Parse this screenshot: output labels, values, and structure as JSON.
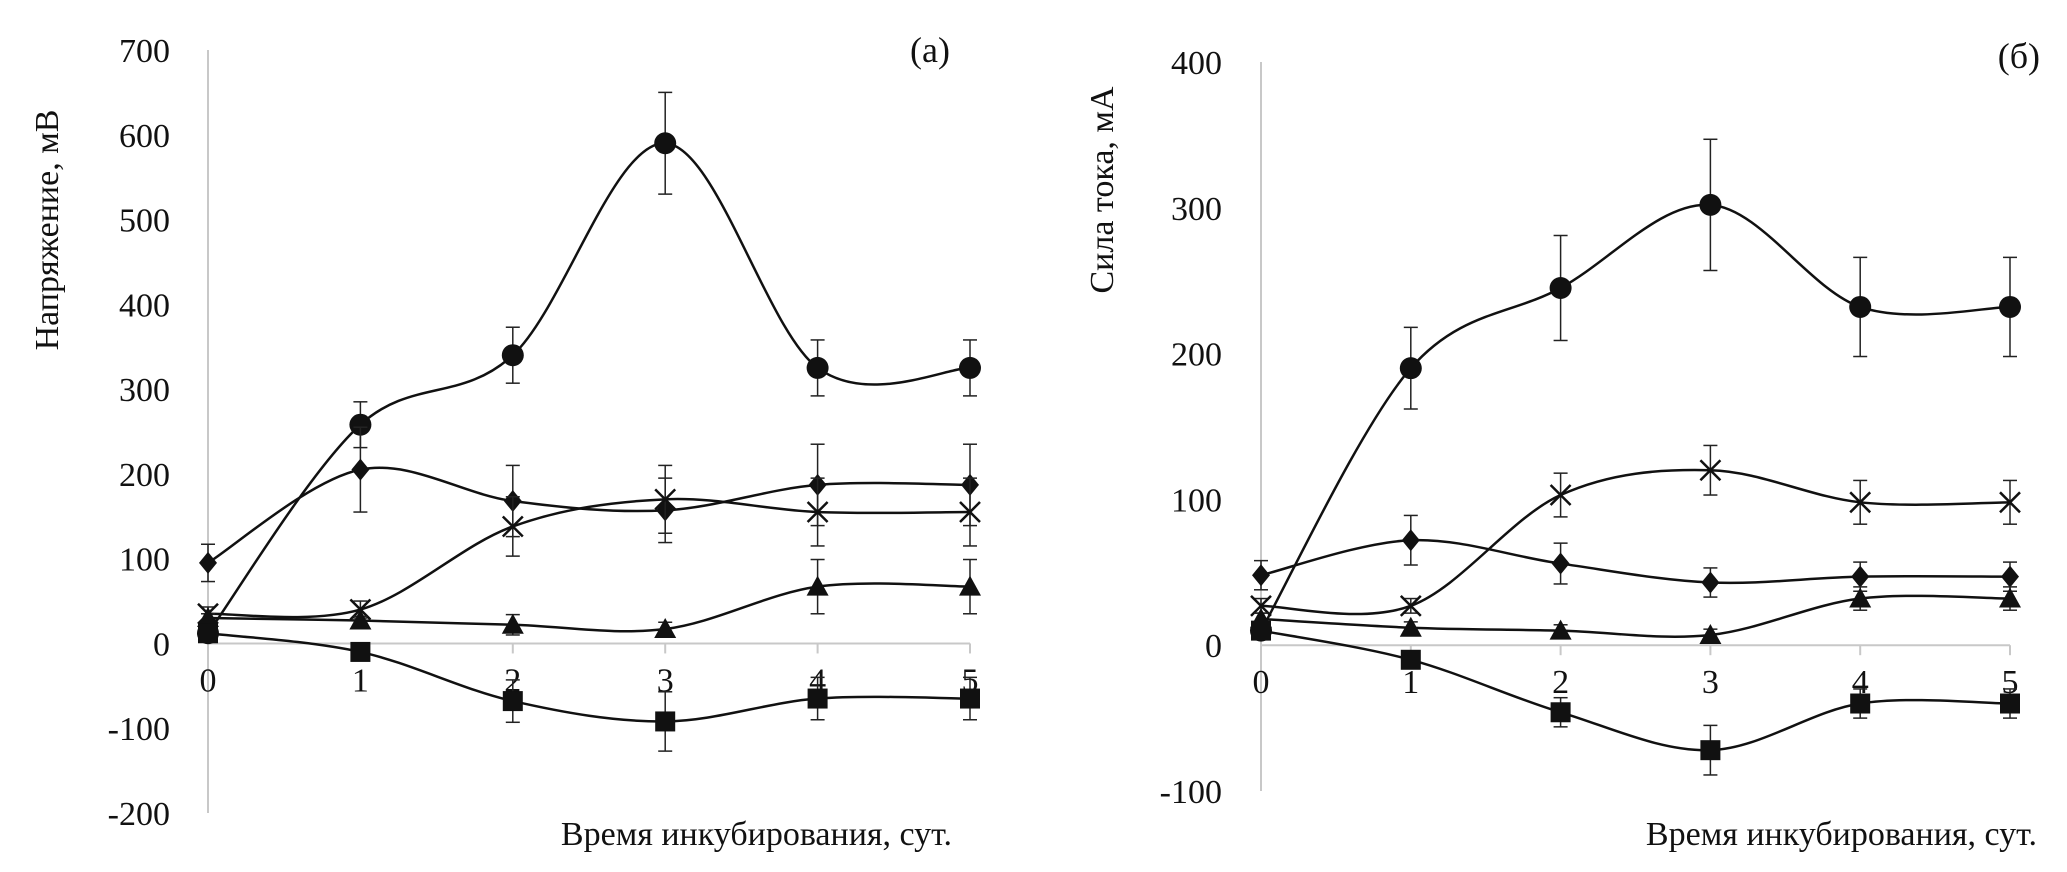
{
  "chart_data": [
    {
      "type": "line",
      "panel_label": "(а)",
      "xlabel": "Время инкубирования, сут.",
      "ylabel": "Напряжение, мВ",
      "x": [
        0,
        1,
        2,
        3,
        4,
        5
      ],
      "x_tick_labels": [
        "0",
        "1",
        "2",
        "3",
        "4",
        "5"
      ],
      "ylim": [
        -200,
        700
      ],
      "y_ticks": [
        -200,
        -100,
        0,
        100,
        200,
        300,
        400,
        500,
        600,
        700
      ],
      "grid": false,
      "series": [
        {
          "name": "circle",
          "marker": "circle",
          "values": [
            12,
            258,
            340,
            590,
            325,
            325
          ],
          "errors": [
            0,
            27,
            33,
            60,
            33,
            33
          ]
        },
        {
          "name": "diamond",
          "marker": "diamond",
          "values": [
            95,
            205,
            168,
            157,
            187,
            187
          ],
          "errors": [
            22,
            50,
            42,
            38,
            48,
            48
          ]
        },
        {
          "name": "cross",
          "marker": "cross",
          "values": [
            35,
            40,
            138,
            170,
            155,
            155
          ],
          "errors": [
            8,
            10,
            35,
            40,
            40,
            40
          ]
        },
        {
          "name": "triangle",
          "marker": "triangle",
          "values": [
            30,
            27,
            22,
            17,
            67,
            67
          ],
          "errors": [
            5,
            5,
            12,
            8,
            32,
            32
          ]
        },
        {
          "name": "square",
          "marker": "square",
          "values": [
            12,
            -10,
            -68,
            -92,
            -65,
            -65
          ],
          "errors": [
            5,
            5,
            25,
            35,
            25,
            25
          ]
        }
      ]
    },
    {
      "type": "line",
      "panel_label": "(б)",
      "xlabel": "Время инкубирования, сут.",
      "ylabel": "Сила тока, мА",
      "x": [
        0,
        1,
        2,
        3,
        4,
        5
      ],
      "x_tick_labels": [
        "0",
        "1",
        "2",
        "3",
        "4",
        "5"
      ],
      "ylim": [
        -100,
        400
      ],
      "y_ticks": [
        -100,
        0,
        100,
        200,
        300,
        400
      ],
      "grid": false,
      "series": [
        {
          "name": "circle",
          "marker": "circle",
          "values": [
            10,
            190,
            245,
            302,
            232,
            232
          ],
          "errors": [
            0,
            28,
            36,
            45,
            34,
            34
          ]
        },
        {
          "name": "cross",
          "marker": "cross",
          "values": [
            27,
            27,
            103,
            120,
            98,
            98
          ],
          "errors": [
            5,
            5,
            15,
            17,
            15,
            15
          ]
        },
        {
          "name": "diamond",
          "marker": "diamond",
          "values": [
            48,
            72,
            56,
            43,
            47,
            47
          ],
          "errors": [
            10,
            17,
            14,
            10,
            10,
            10
          ]
        },
        {
          "name": "triangle",
          "marker": "triangle",
          "values": [
            18,
            12,
            10,
            7,
            32,
            32
          ],
          "errors": [
            4,
            4,
            4,
            4,
            8,
            8
          ]
        },
        {
          "name": "square",
          "marker": "square",
          "values": [
            10,
            -10,
            -46,
            -72,
            -40,
            -40
          ],
          "errors": [
            4,
            4,
            10,
            17,
            10,
            10
          ]
        }
      ]
    }
  ]
}
